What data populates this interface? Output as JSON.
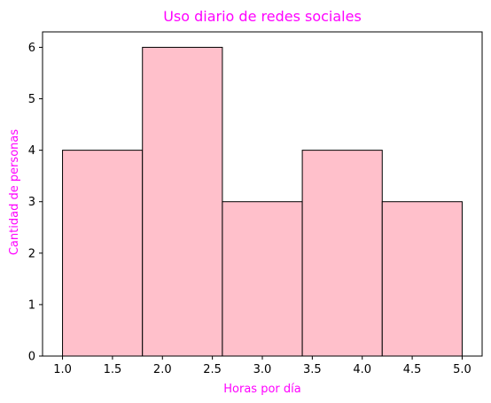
{
  "chart_data": {
    "type": "bar",
    "subtype": "histogram",
    "title": "Uso diario de redes sociales",
    "xlabel": "Horas por día",
    "ylabel": "Cantidad de personas",
    "bins": [
      {
        "start": 1.0,
        "end": 1.8,
        "count": 4
      },
      {
        "start": 1.8,
        "end": 2.6,
        "count": 6
      },
      {
        "start": 2.6,
        "end": 3.4,
        "count": 3
      },
      {
        "start": 3.4,
        "end": 4.2,
        "count": 4
      },
      {
        "start": 4.2,
        "end": 5.0,
        "count": 3
      }
    ],
    "xlim": [
      0.8,
      5.2
    ],
    "ylim": [
      0,
      6.3
    ],
    "xticks": [
      "1.0",
      "1.5",
      "2.0",
      "2.5",
      "3.0",
      "3.5",
      "4.0",
      "4.5",
      "5.0"
    ],
    "yticks": [
      "0",
      "1",
      "2",
      "3",
      "4",
      "5",
      "6"
    ],
    "grid": false,
    "colors": {
      "bar_fill": "#FFC0CB",
      "bar_edge": "#000000",
      "title": "#FF00FF",
      "axis_labels": "#FF00FF"
    }
  }
}
